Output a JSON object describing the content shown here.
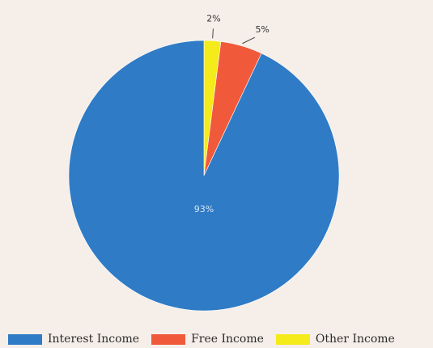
{
  "chart_data": {
    "type": "pie",
    "slices": [
      {
        "name": "Interest Income",
        "value": 93,
        "label": "93%",
        "color": "#2f7bc6"
      },
      {
        "name": "Free Income",
        "value": 5,
        "label": "5%",
        "color": "#f05a3a"
      },
      {
        "name": "Other Income",
        "value": 2,
        "label": "2%",
        "color": "#f5ea1a"
      }
    ],
    "legend_position": "bottom",
    "start": "top",
    "direction": "counterclockwise"
  }
}
